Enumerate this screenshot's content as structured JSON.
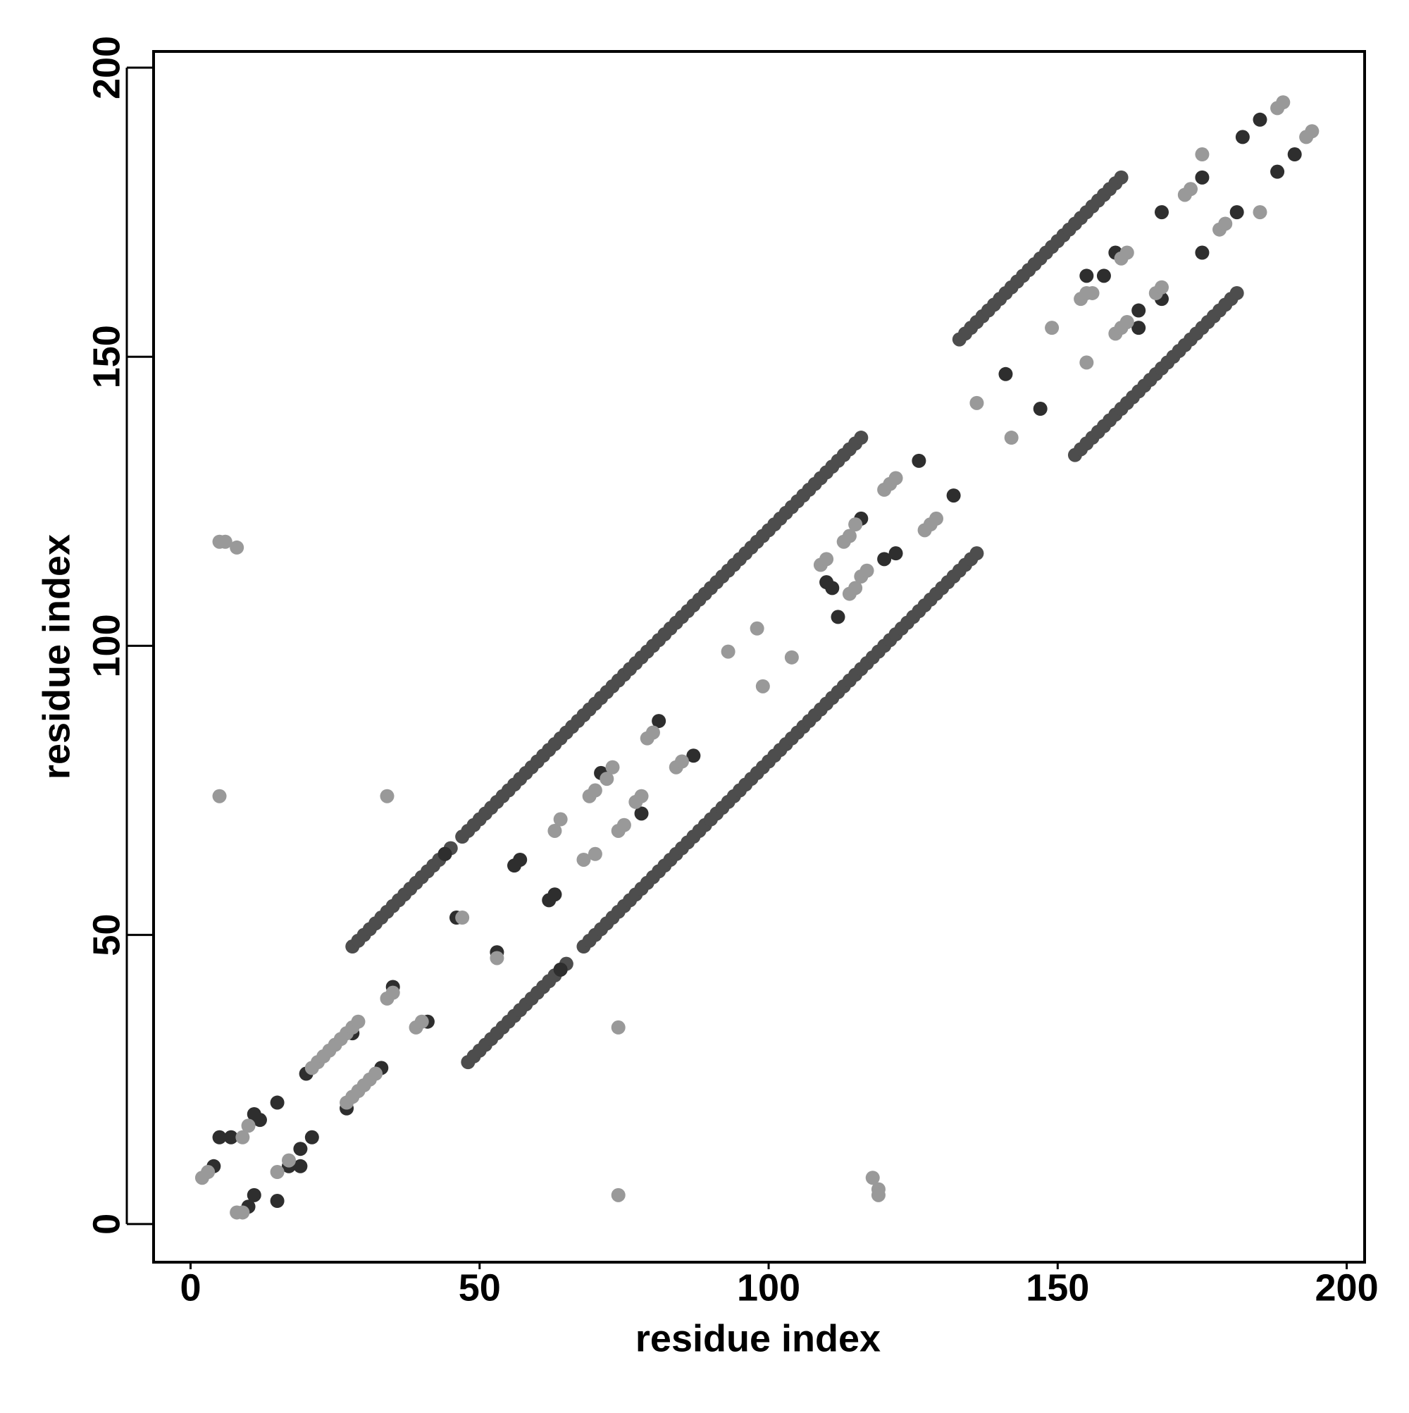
{
  "chart_data": {
    "type": "scatter",
    "xlabel": "residue index",
    "ylabel": "residue index",
    "xlim": [
      -6.4,
      203.1
    ],
    "ylim": [
      -6.6,
      202.8
    ],
    "xticks": [
      0,
      50,
      100,
      150,
      200
    ],
    "yticks": [
      0,
      50,
      100,
      150,
      200
    ],
    "series": [
      {
        "color": "#4d4d4d",
        "x": [
          28,
          29,
          30,
          31,
          32,
          33,
          34,
          35,
          36,
          37,
          38,
          39,
          40,
          41,
          42,
          43,
          44,
          45,
          47,
          48,
          49,
          50,
          51,
          52,
          53,
          54,
          55,
          56,
          57,
          58,
          59,
          60,
          61,
          62,
          63,
          64,
          65,
          66,
          67,
          68,
          69,
          70,
          71,
          72,
          73,
          74,
          75,
          76,
          77,
          78,
          79,
          80,
          81,
          82,
          83,
          84,
          85,
          86,
          87,
          88,
          89,
          90,
          91,
          92,
          93,
          94,
          95,
          96,
          97,
          98,
          99,
          100,
          101,
          102,
          103,
          104,
          105,
          106,
          107,
          108,
          109,
          110,
          111,
          112,
          113,
          114,
          115,
          116,
          48,
          49,
          50,
          51,
          52,
          53,
          54,
          55,
          56,
          57,
          58,
          59,
          60,
          61,
          62,
          63,
          64,
          65,
          68,
          69,
          70,
          71,
          72,
          73,
          74,
          75,
          76,
          77,
          78,
          79,
          80,
          81,
          82,
          83,
          84,
          85,
          86,
          87,
          88,
          89,
          90,
          91,
          92,
          93,
          94,
          95,
          96,
          97,
          98,
          99,
          100,
          101,
          102,
          103,
          104,
          105,
          106,
          107,
          108,
          109,
          110,
          111,
          112,
          113,
          114,
          115,
          116,
          117,
          118,
          119,
          120,
          121,
          122,
          123,
          124,
          125,
          126,
          127,
          128,
          129,
          130,
          131,
          132,
          133,
          134,
          135,
          136,
          133,
          134,
          135,
          136,
          137,
          138,
          139,
          140,
          141,
          142,
          143,
          144,
          145,
          146,
          147,
          148,
          149,
          150,
          151,
          152,
          153,
          154,
          155,
          156,
          157,
          158,
          159,
          160,
          161,
          153,
          154,
          155,
          156,
          157,
          158,
          159,
          160,
          161,
          162,
          163,
          164,
          165,
          166,
          167,
          168,
          169,
          170,
          171,
          172,
          173,
          174,
          175,
          176,
          177,
          178,
          179,
          180,
          181
        ],
        "values": [
          48,
          49,
          50,
          51,
          52,
          53,
          54,
          55,
          56,
          57,
          58,
          59,
          60,
          61,
          62,
          63,
          64,
          65,
          67,
          68,
          69,
          70,
          71,
          72,
          73,
          74,
          75,
          76,
          77,
          78,
          79,
          80,
          81,
          82,
          83,
          84,
          85,
          86,
          87,
          88,
          89,
          90,
          91,
          92,
          93,
          94,
          95,
          96,
          97,
          98,
          99,
          100,
          101,
          102,
          103,
          104,
          105,
          106,
          107,
          108,
          109,
          110,
          111,
          112,
          113,
          114,
          115,
          116,
          117,
          118,
          119,
          120,
          121,
          122,
          123,
          124,
          125,
          126,
          127,
          128,
          129,
          130,
          131,
          132,
          133,
          134,
          135,
          136,
          28,
          29,
          30,
          31,
          32,
          33,
          34,
          35,
          36,
          37,
          38,
          39,
          40,
          41,
          42,
          43,
          44,
          45,
          48,
          49,
          50,
          51,
          52,
          53,
          54,
          55,
          56,
          57,
          58,
          59,
          60,
          61,
          62,
          63,
          64,
          65,
          66,
          67,
          68,
          69,
          70,
          71,
          72,
          73,
          74,
          75,
          76,
          77,
          78,
          79,
          80,
          81,
          82,
          83,
          84,
          85,
          86,
          87,
          88,
          89,
          90,
          91,
          92,
          93,
          94,
          95,
          96,
          97,
          98,
          99,
          100,
          101,
          102,
          103,
          104,
          105,
          106,
          107,
          108,
          109,
          110,
          111,
          112,
          113,
          114,
          115,
          116,
          153,
          154,
          155,
          156,
          157,
          158,
          159,
          160,
          161,
          162,
          163,
          164,
          165,
          166,
          167,
          168,
          169,
          170,
          171,
          172,
          173,
          174,
          175,
          176,
          177,
          178,
          179,
          180,
          181,
          133,
          134,
          135,
          136,
          137,
          138,
          139,
          140,
          141,
          142,
          143,
          144,
          145,
          146,
          147,
          148,
          149,
          150,
          151,
          152,
          153,
          154,
          155,
          156,
          157,
          158,
          159,
          160,
          161
        ]
      },
      {
        "color": "#2e2e2e",
        "x": [
          4,
          5,
          7,
          11,
          12,
          10,
          11,
          15,
          15,
          17,
          19,
          19,
          21,
          20,
          27,
          28,
          33,
          35,
          41,
          46,
          53,
          56,
          57,
          62,
          63,
          71,
          78,
          81,
          87,
          110,
          111,
          112,
          116,
          122,
          120,
          126,
          132,
          141,
          147,
          155,
          158,
          160,
          168,
          164,
          164,
          168,
          175,
          175,
          181,
          185,
          191,
          182,
          188,
          44,
          64
        ],
        "values": [
          10,
          15,
          15,
          19,
          18,
          3,
          5,
          4,
          21,
          10,
          13,
          10,
          15,
          26,
          20,
          33,
          27,
          41,
          35,
          53,
          47,
          62,
          63,
          56,
          57,
          78,
          71,
          87,
          81,
          111,
          110,
          105,
          122,
          116,
          115,
          132,
          126,
          147,
          141,
          164,
          164,
          168,
          160,
          155,
          158,
          175,
          168,
          181,
          175,
          191,
          185,
          188,
          182,
          64,
          44
        ]
      },
      {
        "color": "#999999",
        "x": [
          2,
          3,
          5,
          6,
          8,
          5,
          34,
          74,
          74,
          118,
          119,
          119,
          8,
          9,
          9,
          10,
          15,
          17,
          21,
          22,
          23,
          24,
          25,
          26,
          27,
          28,
          29,
          27,
          28,
          29,
          30,
          31,
          32,
          34,
          35,
          39,
          40,
          53,
          47,
          63,
          64,
          69,
          70,
          72,
          73,
          68,
          70,
          74,
          75,
          77,
          78,
          79,
          80,
          84,
          85,
          93,
          98,
          99,
          104,
          109,
          110,
          113,
          114,
          115,
          114,
          115,
          116,
          117,
          120,
          121,
          122,
          127,
          128,
          129,
          136,
          142,
          149,
          155,
          154,
          155,
          156,
          160,
          161,
          162,
          161,
          162,
          167,
          168,
          172,
          173,
          175,
          178,
          179,
          185,
          188,
          189,
          193,
          194
        ],
        "values": [
          8,
          9,
          118,
          118,
          117,
          74,
          74,
          34,
          5,
          8,
          6,
          5,
          2,
          2,
          15,
          17,
          9,
          11,
          27,
          28,
          29,
          30,
          31,
          32,
          33,
          34,
          35,
          21,
          22,
          23,
          24,
          25,
          26,
          39,
          40,
          34,
          35,
          46,
          53,
          68,
          70,
          74,
          75,
          77,
          79,
          63,
          64,
          68,
          69,
          73,
          74,
          84,
          85,
          79,
          80,
          99,
          103,
          93,
          98,
          114,
          115,
          118,
          119,
          121,
          109,
          110,
          112,
          113,
          127,
          128,
          129,
          120,
          121,
          122,
          142,
          136,
          155,
          149,
          160,
          161,
          161,
          154,
          155,
          156,
          167,
          168,
          161,
          162,
          178,
          179,
          185,
          172,
          173,
          175,
          193,
          194,
          188,
          189
        ]
      }
    ]
  }
}
